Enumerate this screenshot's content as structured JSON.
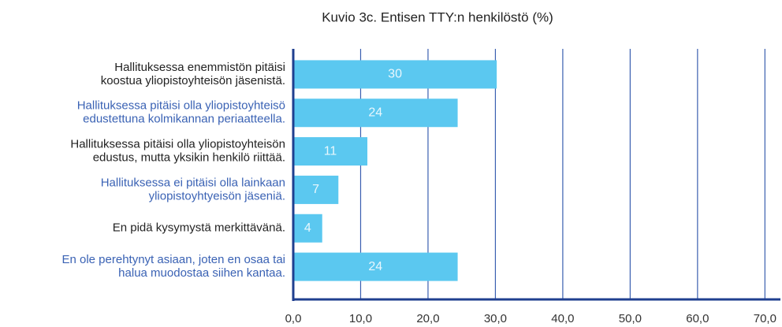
{
  "chart_data": {
    "type": "barh",
    "title": "Kuvio 3c. Entisen TTY:n henkilöstö (%)",
    "categories": [
      [
        "Hallituksessa enemmistön pitäisi",
        "koostua yliopistoyhteisön jäsenistä."
      ],
      [
        "Hallituksessa pitäisi olla yliopistoyhteisö",
        "edustettuna kolmikannan periaatteella."
      ],
      [
        "Hallituksessa pitäisi olla yliopistoyhteisön",
        "edustus, mutta yksikin henkilö riittää."
      ],
      [
        "Hallituksessa ei pitäisi olla lainkaan",
        "yliopistoyhtyeisön jäseniä."
      ],
      [
        "En pidä kysymystä merkittävänä."
      ],
      [
        "En ole perehtynyt asiaan, joten en osaa tai",
        "halua muodostaa siihen kantaa."
      ]
    ],
    "label_colors": [
      "#222222",
      "#3a62b4",
      "#222222",
      "#3a62b4",
      "#222222",
      "#3a62b4"
    ],
    "values": [
      30.2,
      24.4,
      11.0,
      6.7,
      4.3,
      24.4
    ],
    "value_labels": [
      "30",
      "24",
      "11",
      "7",
      "4",
      "24"
    ],
    "color": "#5bc8f0",
    "xlim": [
      0,
      72.3
    ],
    "xticks": [
      {
        "value": 0,
        "label": "0,0"
      },
      {
        "value": 10,
        "label": "10,0"
      },
      {
        "value": 20,
        "label": "20,0"
      },
      {
        "value": 30,
        "label": "30,0"
      },
      {
        "value": 40,
        "label": "40,0"
      },
      {
        "value": 50,
        "label": "50,0"
      },
      {
        "value": 60,
        "label": "60,0"
      },
      {
        "value": 70,
        "label": "70,0"
      }
    ],
    "grid": true
  }
}
